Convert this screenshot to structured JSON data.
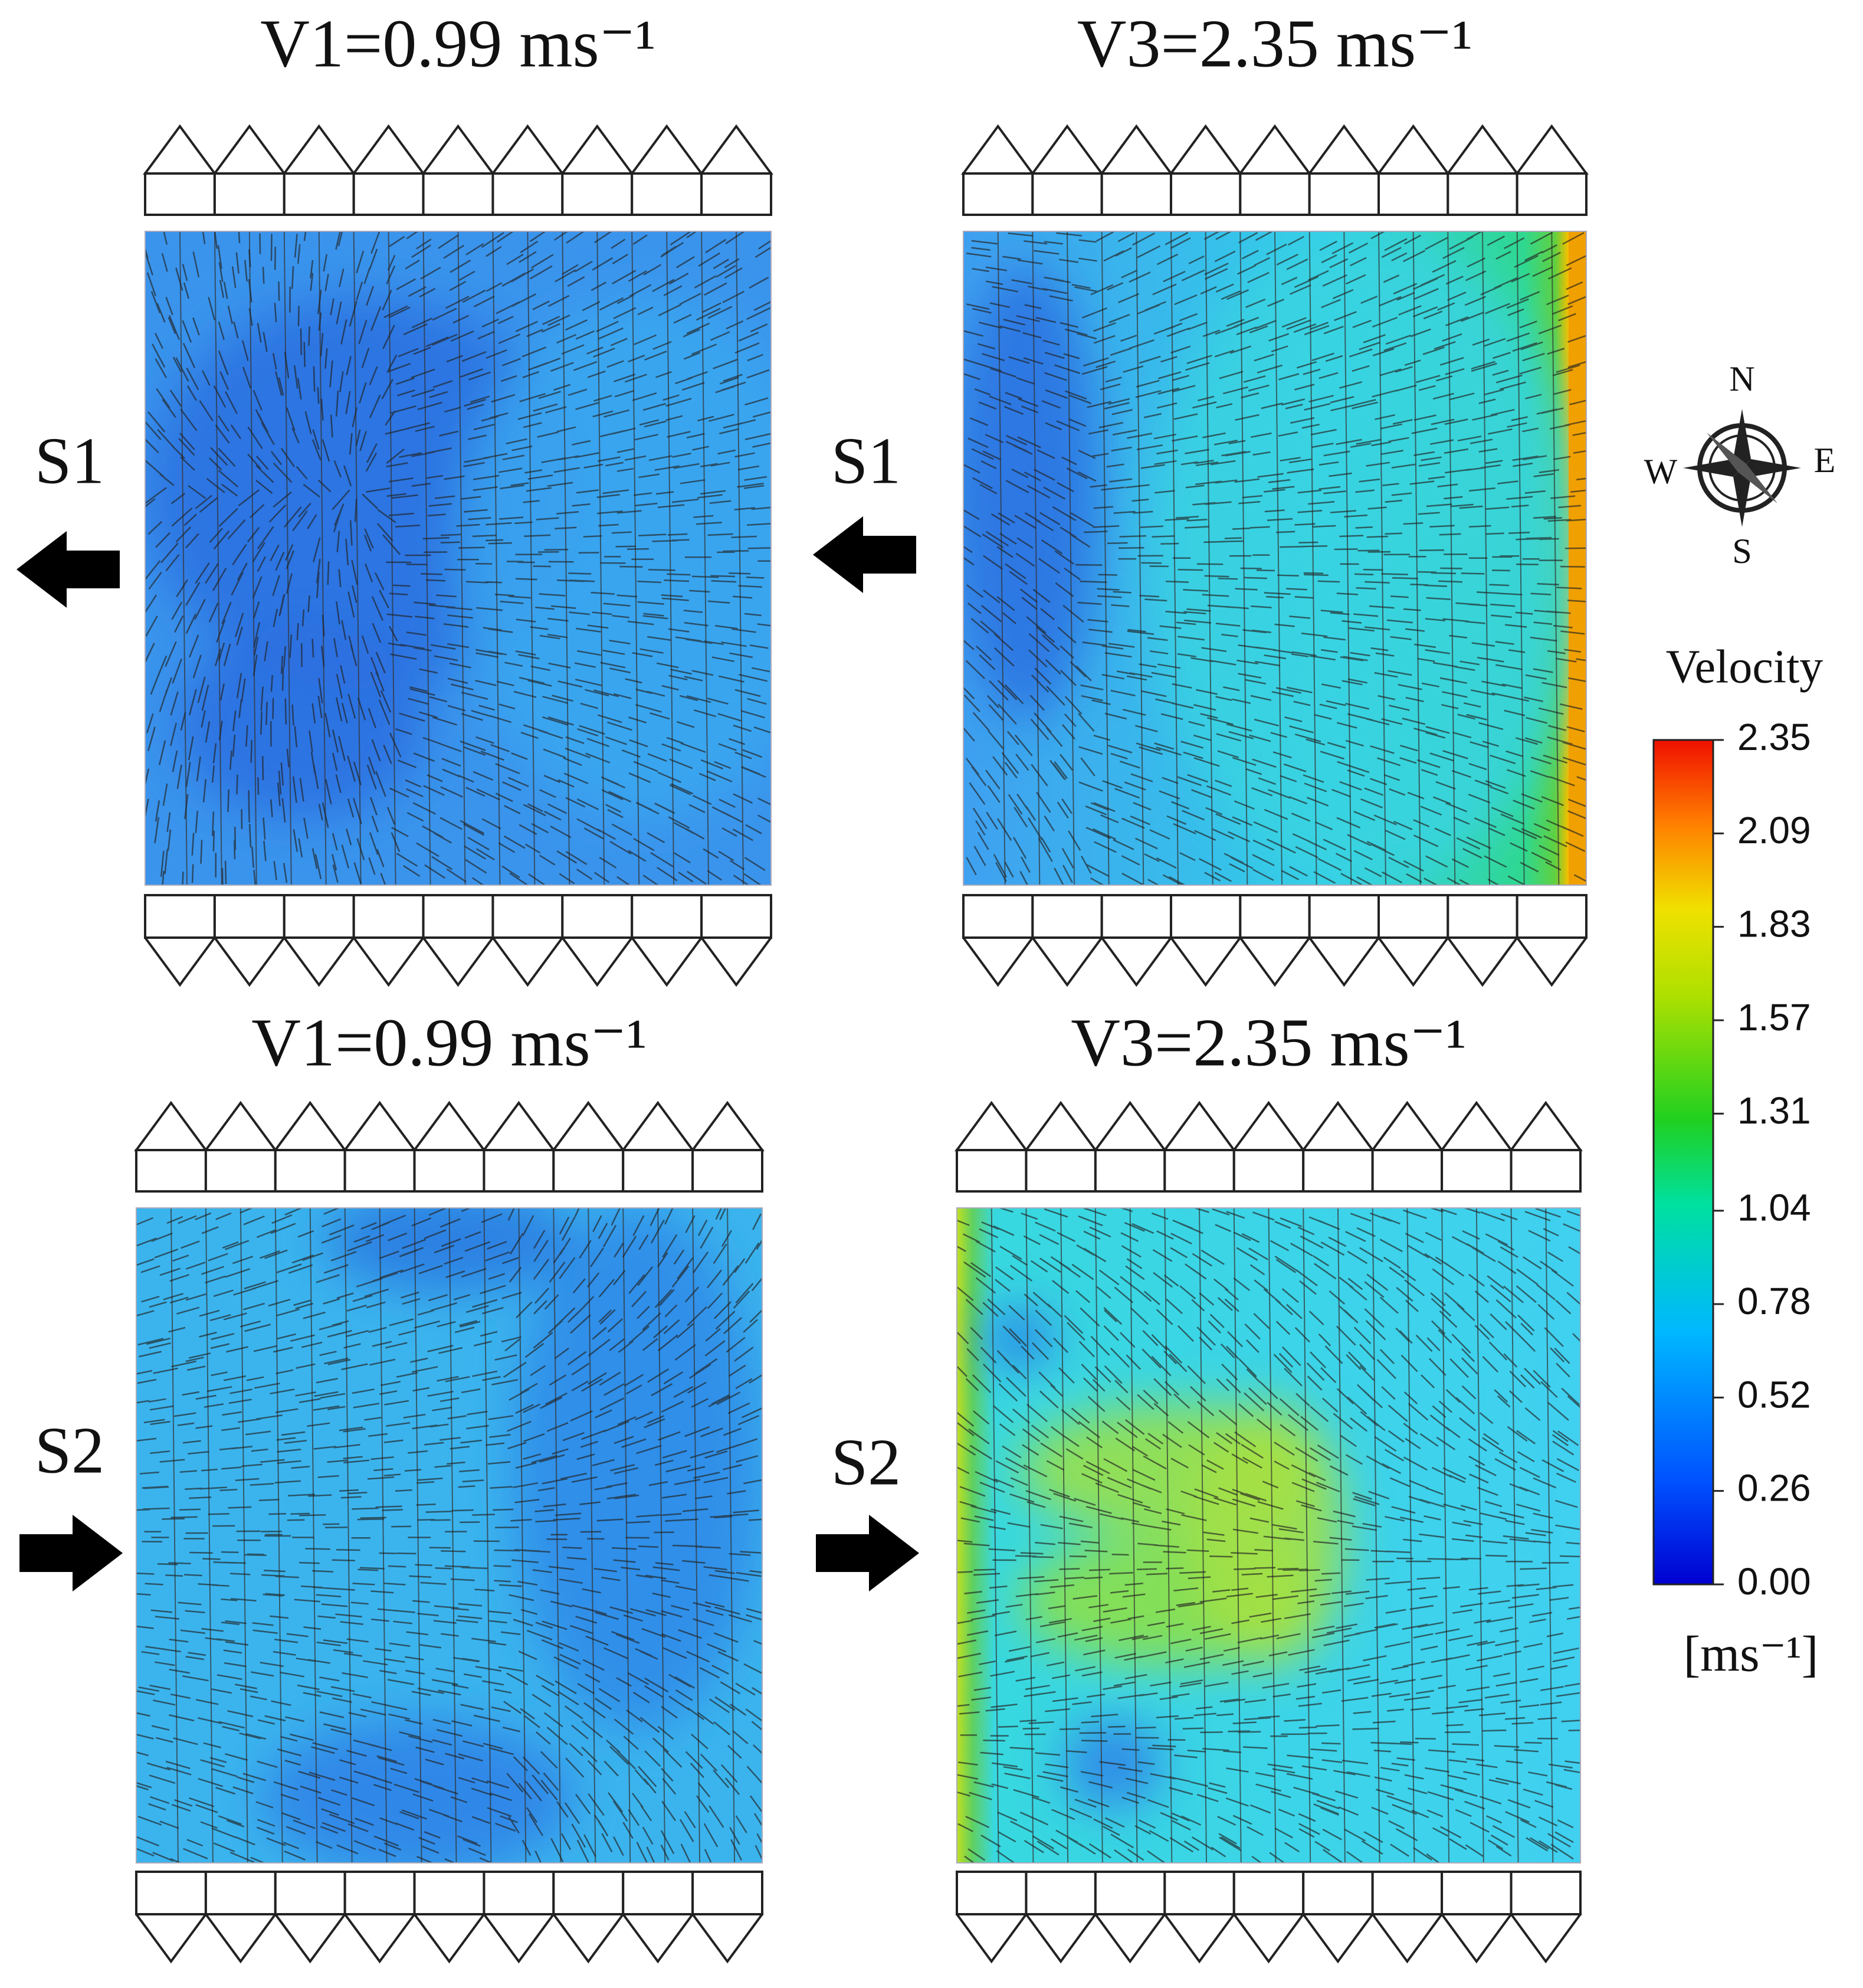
{
  "panels": [
    {
      "title": "V1=0.99 ms⁻¹",
      "label": "S1"
    },
    {
      "title": "V3=2.35 ms⁻¹",
      "label": "S1"
    },
    {
      "title": "V1=0.99 ms⁻¹",
      "label": "S2"
    },
    {
      "title": "V3=2.35 ms⁻¹",
      "label": "S2"
    }
  ],
  "compass": {
    "north": "N",
    "east": "E",
    "south": "S",
    "west": "W"
  },
  "colorbar": {
    "title": "Velocity",
    "unit": "[ms⁻¹]",
    "ticks": [
      {
        "value": 2.35,
        "label": "2.35"
      },
      {
        "value": 2.09,
        "label": "2.09"
      },
      {
        "value": 1.83,
        "label": "1.83"
      },
      {
        "value": 1.57,
        "label": "1.57"
      },
      {
        "value": 1.31,
        "label": "1.31"
      },
      {
        "value": 1.04,
        "label": "1.04"
      },
      {
        "value": 0.78,
        "label": "0.78"
      },
      {
        "value": 0.52,
        "label": "0.52"
      },
      {
        "value": 0.26,
        "label": "0.26"
      },
      {
        "value": 0,
        "label": "0.00"
      }
    ]
  }
}
